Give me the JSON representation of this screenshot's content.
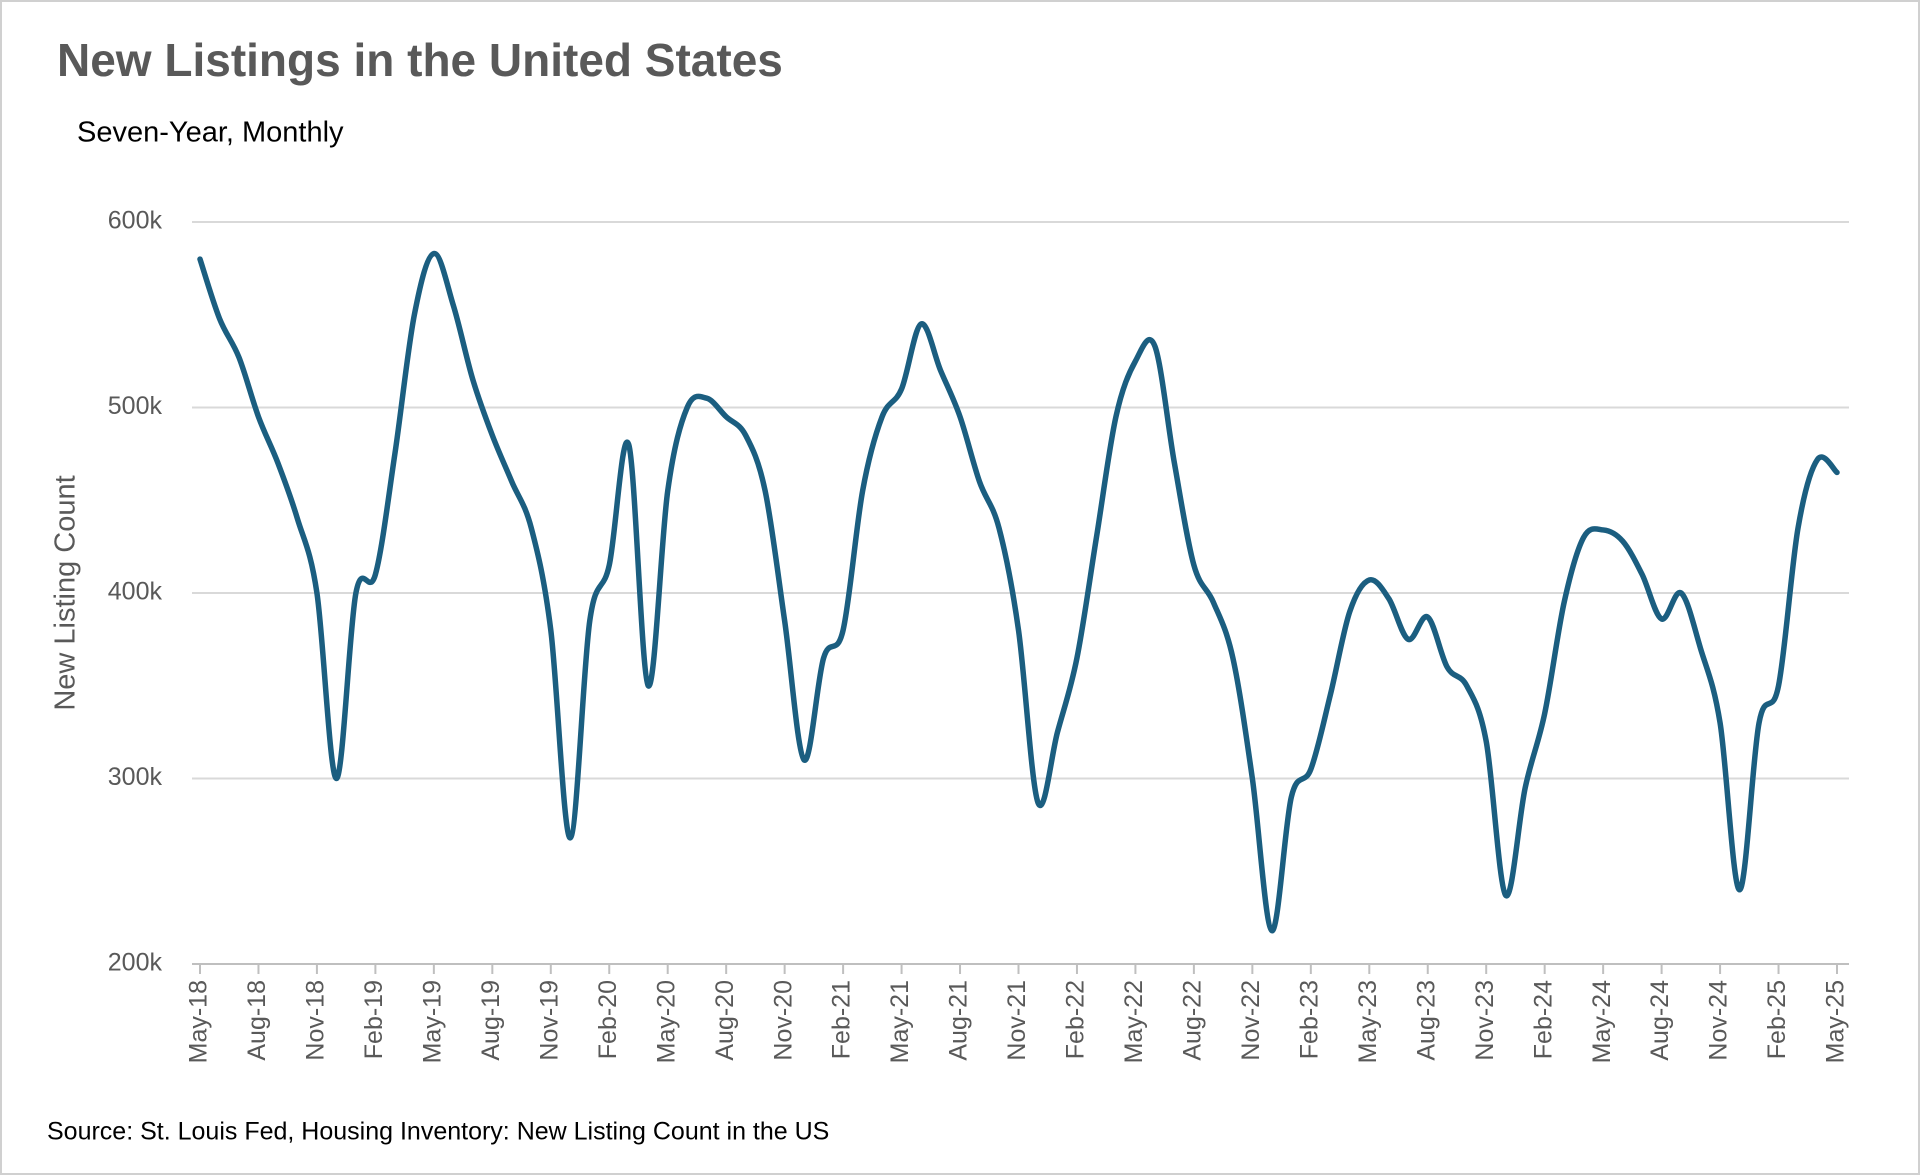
{
  "chart_data": {
    "type": "line",
    "title": "New Listings in the United States",
    "subtitle": "Seven-Year, Monthly",
    "y_label": "New Listing Count",
    "source": "Source: St. Louis Fed, Housing Inventory: New Listing Count in the US",
    "categories": [
      "May-18",
      null,
      null,
      "Aug-18",
      null,
      null,
      "Nov-18",
      null,
      null,
      "Feb-19",
      null,
      null,
      "May-19",
      null,
      null,
      "Aug-19",
      null,
      null,
      "Nov-19",
      null,
      null,
      "Feb-20",
      null,
      null,
      "May-20",
      null,
      null,
      "Aug-20",
      null,
      null,
      "Nov-20",
      null,
      null,
      "Feb-21",
      null,
      null,
      "May-21",
      null,
      null,
      "Aug-21",
      null,
      null,
      "Nov-21",
      null,
      null,
      "Feb-22",
      null,
      null,
      "May-22",
      null,
      null,
      "Aug-22",
      null,
      null,
      "Nov-22",
      null,
      null,
      "Feb-23",
      null,
      null,
      "May-23",
      null,
      null,
      "Aug-23",
      null,
      null,
      "Nov-23",
      null,
      null,
      "Feb-24",
      null,
      null,
      "May-24",
      null,
      null,
      "Aug-24",
      null,
      null,
      "Nov-24",
      null,
      null,
      "Feb-25",
      null,
      null,
      "May-25"
    ],
    "series": [
      {
        "name": "New Listing Count",
        "color": "#1b5e80",
        "values": [
          580,
          548,
          527,
          495,
          470,
          440,
          400,
          300,
          400,
          410,
          475,
          550,
          583,
          555,
          515,
          485,
          460,
          435,
          380,
          268,
          385,
          415,
          480,
          350,
          455,
          500,
          505,
          495,
          485,
          455,
          385,
          310,
          365,
          380,
          455,
          495,
          510,
          545,
          520,
          495,
          460,
          435,
          380,
          287,
          325,
          365,
          430,
          495,
          525,
          533,
          470,
          415,
          395,
          365,
          300,
          218,
          290,
          305,
          345,
          390,
          407,
          397,
          375,
          387,
          360,
          350,
          320,
          237,
          295,
          335,
          395,
          430,
          434,
          428,
          410,
          386,
          400,
          370,
          330,
          240,
          330,
          350,
          435,
          472,
          465
        ]
      }
    ],
    "ylim": [
      200,
      600
    ],
    "yticks": [
      {
        "value": 200,
        "label": "200k"
      },
      {
        "value": 300,
        "label": "300k"
      },
      {
        "value": 400,
        "label": "400k"
      },
      {
        "value": 500,
        "label": "500k"
      },
      {
        "value": 600,
        "label": "600k"
      }
    ],
    "grid": true
  }
}
